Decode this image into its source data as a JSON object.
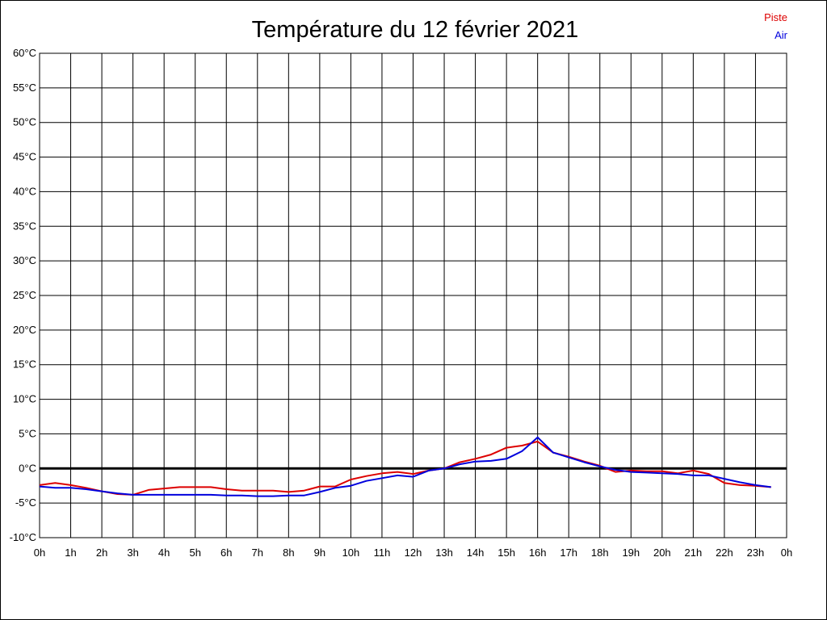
{
  "chart_data": {
    "type": "line",
    "title": "Température du 12 février 2021",
    "xlabel": "",
    "ylabel": "",
    "x_tick_labels": [
      "0h",
      "1h",
      "2h",
      "3h",
      "4h",
      "5h",
      "6h",
      "7h",
      "8h",
      "9h",
      "10h",
      "11h",
      "12h",
      "13h",
      "14h",
      "15h",
      "16h",
      "17h",
      "18h",
      "19h",
      "20h",
      "21h",
      "22h",
      "23h",
      "0h"
    ],
    "y_tick_labels": [
      "60°C",
      "55°C",
      "50°C",
      "45°C",
      "40°C",
      "35°C",
      "30°C",
      "25°C",
      "20°C",
      "15°C",
      "10°C",
      "5°C",
      "0°C",
      "-5°C",
      "-10°C"
    ],
    "xlim": [
      0,
      24
    ],
    "ylim": [
      -10,
      60
    ],
    "grid": true,
    "legend_position": "top-right",
    "reference_line": 0,
    "x": [
      0,
      0.5,
      1,
      1.5,
      2,
      2.5,
      3,
      3.5,
      4,
      4.5,
      5,
      5.5,
      6,
      6.5,
      7,
      7.5,
      8,
      8.5,
      9,
      9.5,
      10,
      10.5,
      11,
      11.5,
      12,
      12.5,
      13,
      13.5,
      14,
      14.5,
      15,
      15.5,
      16,
      16.5,
      17,
      17.5,
      18,
      18.5,
      19,
      19.5,
      20,
      20.5,
      21,
      21.5,
      22,
      22.5,
      23,
      23.5
    ],
    "series": [
      {
        "name": "Piste",
        "color": "#dd0000",
        "values": [
          -2.4,
          -2.1,
          -2.4,
          -2.8,
          -3.3,
          -3.7,
          -3.8,
          -3.1,
          -2.9,
          -2.7,
          -2.7,
          -2.7,
          -3.0,
          -3.2,
          -3.2,
          -3.2,
          -3.4,
          -3.2,
          -2.6,
          -2.6,
          -1.6,
          -1.1,
          -0.7,
          -0.5,
          -0.8,
          -0.3,
          0.0,
          0.9,
          1.4,
          2.0,
          3.0,
          3.3,
          3.9,
          2.3,
          1.7,
          1.0,
          0.4,
          -0.5,
          -0.3,
          -0.4,
          -0.4,
          -0.7,
          -0.3,
          -0.8,
          -2.1,
          -2.4,
          -2.5,
          -2.7
        ]
      },
      {
        "name": "Air",
        "color": "#0000dd",
        "values": [
          -2.6,
          -2.8,
          -2.8,
          -3.0,
          -3.3,
          -3.6,
          -3.8,
          -3.8,
          -3.8,
          -3.8,
          -3.8,
          -3.8,
          -3.9,
          -3.9,
          -4.0,
          -4.0,
          -3.9,
          -3.9,
          -3.4,
          -2.8,
          -2.5,
          -1.8,
          -1.4,
          -1.0,
          -1.2,
          -0.3,
          0.0,
          0.6,
          1.0,
          1.1,
          1.4,
          2.5,
          4.5,
          2.3,
          1.6,
          0.9,
          0.3,
          -0.2,
          -0.5,
          -0.6,
          -0.7,
          -0.8,
          -1.0,
          -1.0,
          -1.5,
          -2.0,
          -2.4,
          -2.7
        ]
      }
    ]
  }
}
